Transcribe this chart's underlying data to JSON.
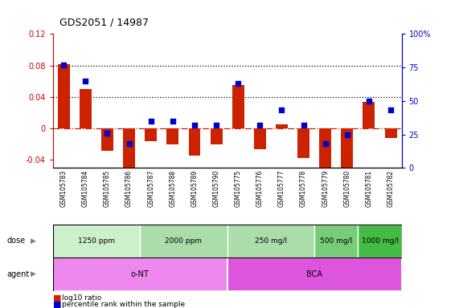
{
  "title": "GDS2051 / 14987",
  "categories": [
    "GSM105783",
    "GSM105784",
    "GSM105785",
    "GSM105786",
    "GSM105787",
    "GSM105788",
    "GSM105789",
    "GSM105790",
    "GSM105775",
    "GSM105776",
    "GSM105777",
    "GSM105778",
    "GSM105779",
    "GSM105780",
    "GSM105781",
    "GSM105782"
  ],
  "log10_ratio": [
    0.082,
    0.05,
    -0.028,
    -0.054,
    -0.016,
    -0.02,
    -0.034,
    -0.02,
    0.055,
    -0.026,
    0.005,
    -0.038,
    -0.07,
    -0.05,
    0.034,
    -0.012
  ],
  "percentile_rank_pct": [
    77,
    65,
    26,
    18,
    35,
    35,
    32,
    32,
    63,
    32,
    43,
    32,
    18,
    25,
    50,
    43
  ],
  "ylim_left": [
    -0.05,
    0.12
  ],
  "ylim_right": [
    0,
    100
  ],
  "yticks_left": [
    -0.04,
    0.0,
    0.04,
    0.08,
    0.12
  ],
  "yticks_left_labels": [
    "-0.04",
    "0",
    "0.04",
    "0.08",
    "0.12"
  ],
  "yticks_right": [
    0,
    25,
    50,
    75,
    100
  ],
  "yticks_right_labels": [
    "0",
    "25",
    "50",
    "75",
    "100%"
  ],
  "dotted_line_vals": [
    0.08,
    0.04
  ],
  "dose_groups": [
    {
      "label": "1250 ppm",
      "start": 0,
      "end": 4,
      "color": "#ccf0cc"
    },
    {
      "label": "2000 ppm",
      "start": 4,
      "end": 8,
      "color": "#aaddaa"
    },
    {
      "label": "250 mg/l",
      "start": 8,
      "end": 12,
      "color": "#aaddaa"
    },
    {
      "label": "500 mg/l",
      "start": 12,
      "end": 14,
      "color": "#77cc77"
    },
    {
      "label": "1000 mg/l",
      "start": 14,
      "end": 16,
      "color": "#44bb44"
    }
  ],
  "agent_groups": [
    {
      "label": "o-NT",
      "start": 0,
      "end": 8,
      "color": "#ee88ee"
    },
    {
      "label": "BCA",
      "start": 8,
      "end": 16,
      "color": "#dd55dd"
    }
  ],
  "bar_color": "#cc2200",
  "dot_color": "#0000cc",
  "hline_color": "#cc2200",
  "dotted_line_color": "#000000",
  "background_color": "#ffffff",
  "left_axis_color": "#cc0000",
  "right_axis_color": "#0000cc",
  "label_bg_color": "#c8c8c8",
  "label_sep_color": "#ffffff"
}
